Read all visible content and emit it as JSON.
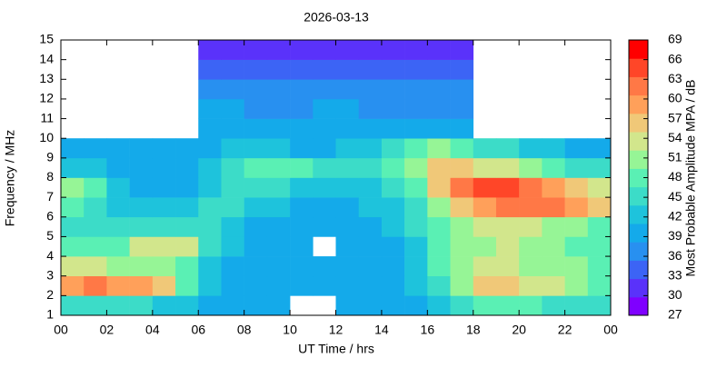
{
  "chart_data": {
    "type": "heatmap",
    "title": "2026-03-13",
    "x_label": "UT Time / hrs",
    "y_label": "Frequency / MHz",
    "colorbar_label": "Most Probable Amplitude MPA / dB",
    "x_bins": [
      0,
      1,
      2,
      3,
      4,
      5,
      6,
      7,
      8,
      9,
      10,
      11,
      12,
      13,
      14,
      15,
      16,
      17,
      18,
      19,
      20,
      21,
      22,
      23,
      24
    ],
    "y_bins": [
      1,
      2,
      3,
      4,
      5,
      6,
      7,
      8,
      9,
      10,
      11,
      12,
      13,
      14,
      15
    ],
    "values": [
      [
        45,
        45,
        45,
        45,
        42,
        42,
        40,
        40,
        39,
        39,
        null,
        null,
        39,
        39,
        39,
        39,
        42,
        45,
        48,
        48,
        48,
        45,
        45,
        45
      ],
      [
        60,
        63,
        60,
        60,
        57,
        48,
        42,
        40,
        39,
        39,
        39,
        39,
        39,
        39,
        39,
        42,
        45,
        51,
        57,
        57,
        54,
        54,
        51,
        48
      ],
      [
        54,
        54,
        51,
        51,
        51,
        48,
        42,
        40,
        39,
        39,
        39,
        39,
        39,
        39,
        39,
        42,
        48,
        51,
        54,
        54,
        51,
        51,
        51,
        48
      ],
      [
        48,
        48,
        48,
        54,
        54,
        54,
        45,
        42,
        39,
        39,
        39,
        null,
        39,
        39,
        39,
        42,
        48,
        51,
        51,
        54,
        51,
        51,
        48,
        48
      ],
      [
        45,
        45,
        45,
        45,
        45,
        45,
        45,
        42,
        40,
        40,
        39,
        39,
        39,
        39,
        42,
        45,
        48,
        51,
        54,
        54,
        54,
        51,
        51,
        48
      ],
      [
        48,
        45,
        42,
        42,
        42,
        42,
        45,
        45,
        42,
        42,
        40,
        40,
        40,
        42,
        42,
        45,
        51,
        57,
        60,
        63,
        63,
        63,
        60,
        57
      ],
      [
        51,
        48,
        42,
        40,
        40,
        40,
        42,
        45,
        45,
        45,
        42,
        42,
        42,
        42,
        45,
        48,
        57,
        63,
        66,
        66,
        63,
        60,
        57,
        54
      ],
      [
        42,
        42,
        40,
        40,
        40,
        40,
        42,
        45,
        48,
        48,
        48,
        45,
        45,
        45,
        48,
        51,
        57,
        57,
        54,
        54,
        51,
        48,
        45,
        45
      ],
      [
        40,
        40,
        39,
        39,
        39,
        39,
        40,
        42,
        42,
        42,
        40,
        40,
        42,
        42,
        45,
        48,
        51,
        48,
        45,
        45,
        42,
        42,
        40,
        40
      ],
      [
        null,
        null,
        null,
        null,
        null,
        null,
        39,
        39,
        39,
        39,
        39,
        39,
        39,
        39,
        39,
        39,
        39,
        39,
        null,
        null,
        null,
        null,
        null,
        null
      ],
      [
        null,
        null,
        null,
        null,
        null,
        null,
        39,
        39,
        38,
        38,
        38,
        39,
        39,
        38,
        38,
        38,
        38,
        38,
        null,
        null,
        null,
        null,
        null,
        null
      ],
      [
        null,
        null,
        null,
        null,
        null,
        null,
        36,
        36,
        36,
        37,
        37,
        36,
        36,
        36,
        36,
        36,
        36,
        36,
        null,
        null,
        null,
        null,
        null,
        null
      ],
      [
        null,
        null,
        null,
        null,
        null,
        null,
        34,
        34,
        33,
        34,
        34,
        33,
        34,
        34,
        33,
        33,
        34,
        34,
        null,
        null,
        null,
        null,
        null,
        null
      ],
      [
        null,
        null,
        null,
        null,
        null,
        null,
        30,
        30,
        31,
        30,
        30,
        31,
        30,
        30,
        31,
        30,
        30,
        30,
        null,
        null,
        null,
        null,
        null,
        null
      ]
    ],
    "xlim": [
      0,
      24
    ],
    "xticks": [
      {
        "value": 0,
        "label": "00"
      },
      {
        "value": 2,
        "label": "02"
      },
      {
        "value": 4,
        "label": "04"
      },
      {
        "value": 6,
        "label": "06"
      },
      {
        "value": 8,
        "label": "08"
      },
      10,
      12,
      14,
      16,
      18,
      20,
      22,
      {
        "value": 24,
        "label": "00"
      }
    ],
    "ylim": [
      1,
      15
    ],
    "yticks": [
      1,
      2,
      3,
      4,
      5,
      6,
      7,
      8,
      9,
      10,
      11,
      12,
      13,
      14,
      15
    ],
    "zlim": [
      27,
      69
    ],
    "zticks": [
      27,
      30,
      33,
      36,
      39,
      42,
      45,
      48,
      51,
      54,
      57,
      60,
      63,
      66,
      69
    ],
    "colors": [
      "#7f00ff",
      "#5a32fa",
      "#3c64f5",
      "#2890f0",
      "#14aaea",
      "#1ec3dc",
      "#3cdcc8",
      "#5af0b4",
      "#96f596",
      "#d2e68c",
      "#f0c878",
      "#ffa05a",
      "#ff7846",
      "#ff4628",
      "#ff0000"
    ]
  }
}
